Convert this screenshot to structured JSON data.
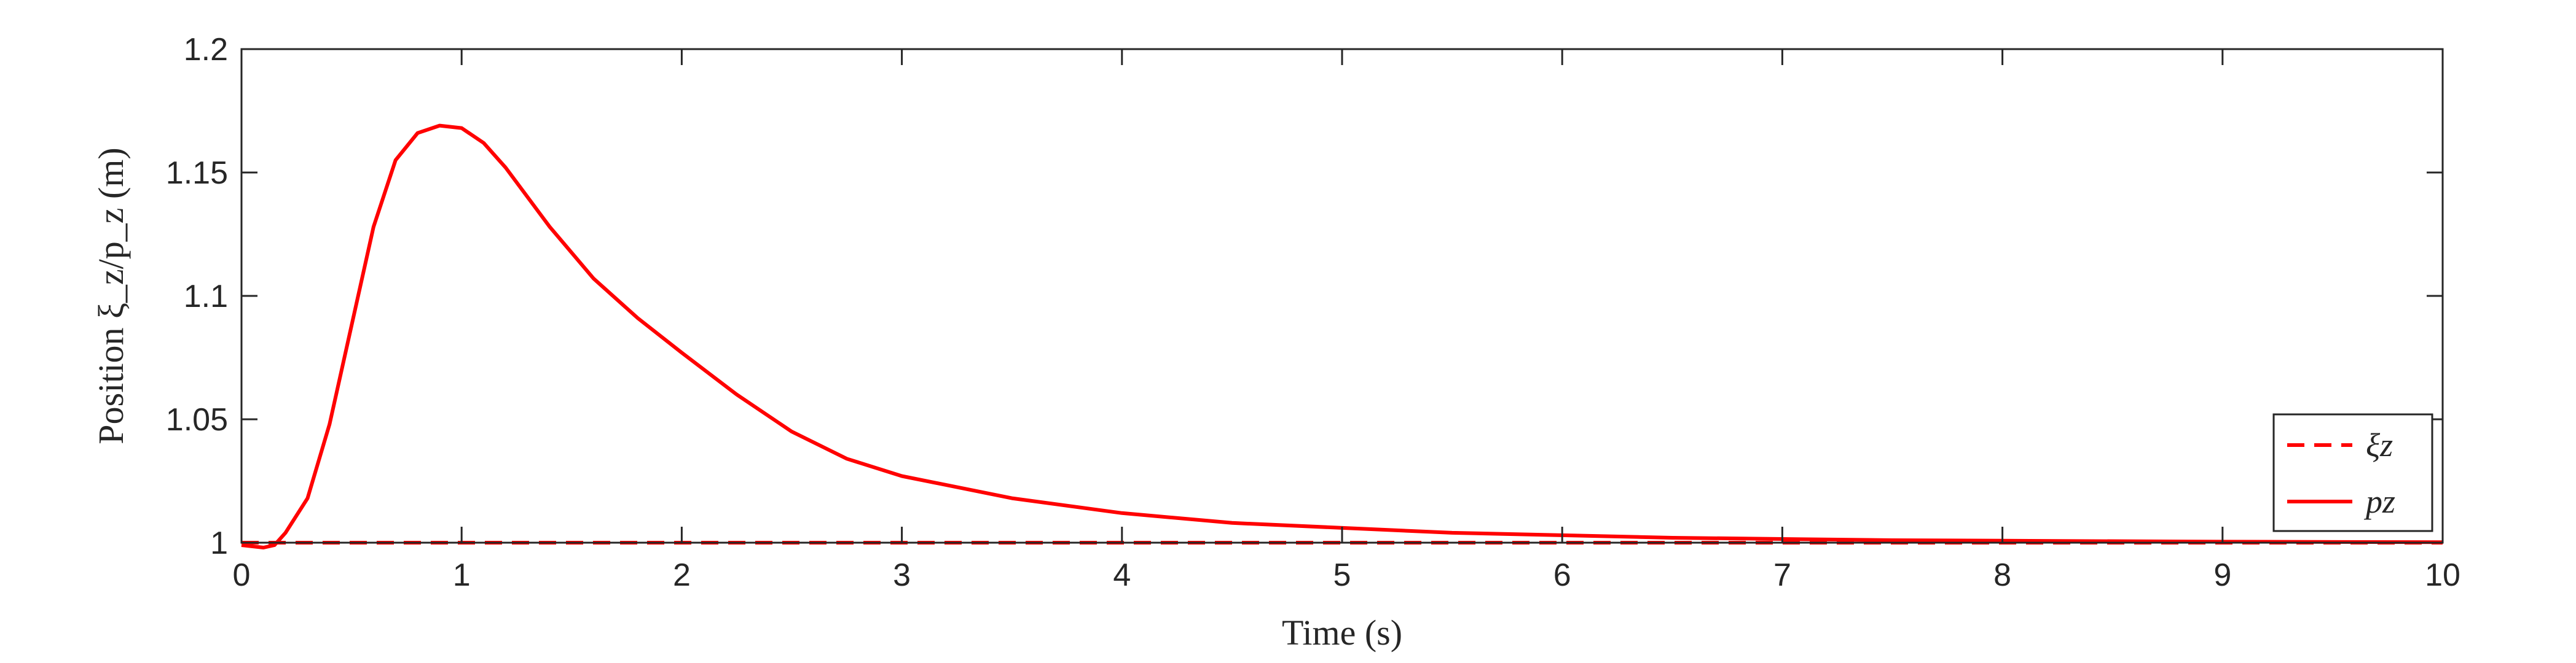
{
  "chart_data": {
    "type": "line",
    "xlabel": "Time (s)",
    "ylabel": "Position ξ_z/p_z (m)",
    "xlim": [
      0,
      10
    ],
    "ylim": [
      1.0,
      1.2
    ],
    "x_ticks": [
      "0",
      "1",
      "2",
      "3",
      "4",
      "5",
      "6",
      "7",
      "8",
      "9",
      "10"
    ],
    "y_ticks": [
      "1",
      "1.05",
      "1.1",
      "1.15",
      "1.2"
    ],
    "grid": false,
    "legend_position": "bottom-right",
    "series": [
      {
        "name": "ξz",
        "style": "dashed",
        "color": "#ff0000",
        "x": [
          0,
          10
        ],
        "y": [
          1.0,
          1.0
        ]
      },
      {
        "name": "pz",
        "style": "solid",
        "color": "#ff0000",
        "x": [
          0,
          0.05,
          0.1,
          0.15,
          0.2,
          0.3,
          0.4,
          0.5,
          0.6,
          0.7,
          0.8,
          0.9,
          1.0,
          1.1,
          1.2,
          1.4,
          1.6,
          1.8,
          2.0,
          2.25,
          2.5,
          2.75,
          3.0,
          3.5,
          4.0,
          4.5,
          5.0,
          5.5,
          6.0,
          6.5,
          7.0,
          7.5,
          8.0,
          9.0,
          10.0
        ],
        "y": [
          0.999,
          0.9985,
          0.998,
          0.999,
          1.004,
          1.018,
          1.048,
          1.088,
          1.128,
          1.155,
          1.166,
          1.169,
          1.168,
          1.162,
          1.152,
          1.128,
          1.107,
          1.091,
          1.077,
          1.06,
          1.045,
          1.034,
          1.027,
          1.018,
          1.012,
          1.008,
          1.006,
          1.004,
          1.003,
          1.002,
          1.0015,
          1.001,
          1.0008,
          1.0004,
          1.0002
        ]
      }
    ]
  }
}
